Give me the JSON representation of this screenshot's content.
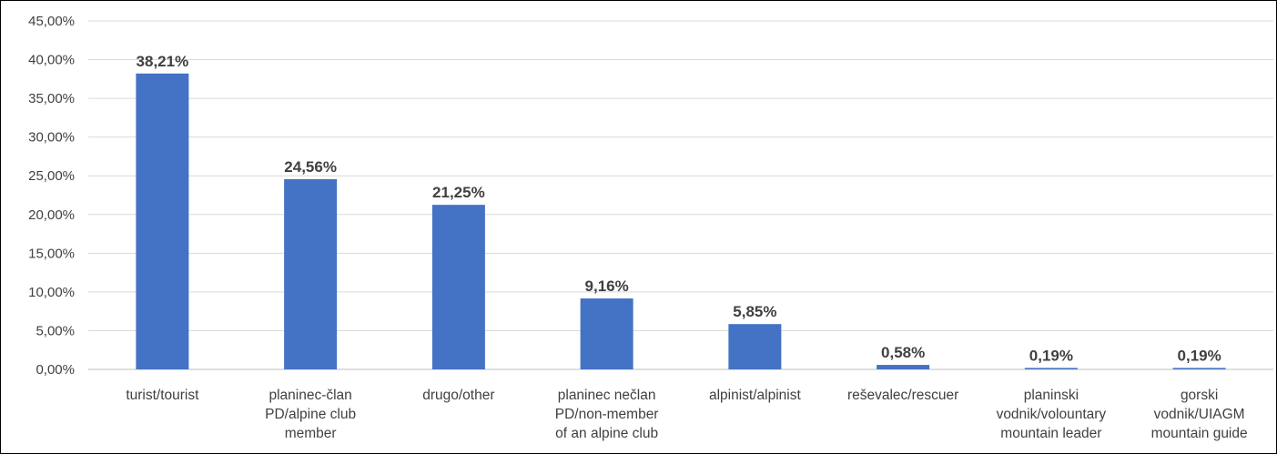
{
  "chart_data": {
    "type": "bar",
    "title": "",
    "xlabel": "",
    "ylabel": "",
    "ylim": [
      0,
      45
    ],
    "yticks": [
      "0,00%",
      "5,00%",
      "10,00%",
      "15,00%",
      "20,00%",
      "25,00%",
      "30,00%",
      "35,00%",
      "40,00%",
      "45,00%"
    ],
    "grid": true,
    "legend": "none",
    "bar_color": "#4472c4",
    "categories": [
      [
        "turist/tourist"
      ],
      [
        "planinec-član",
        "PD/alpine club",
        "member"
      ],
      [
        "drugo/other"
      ],
      [
        "planinec nečlan",
        "PD/non-member",
        "of an alpine club"
      ],
      [
        "alpinist/alpinist"
      ],
      [
        "reševalec/rescuer"
      ],
      [
        "planinski",
        "vodnik/volountary",
        "mountain leader"
      ],
      [
        "gorski",
        "vodnik/UIAGM",
        "mountain guide"
      ]
    ],
    "values": [
      38.21,
      24.56,
      21.25,
      9.16,
      5.85,
      0.58,
      0.19,
      0.19
    ],
    "data_labels": [
      "38,21%",
      "24,56%",
      "21,25%",
      "9,16%",
      "5,85%",
      "0,58%",
      "0,19%",
      "0,19%"
    ]
  }
}
